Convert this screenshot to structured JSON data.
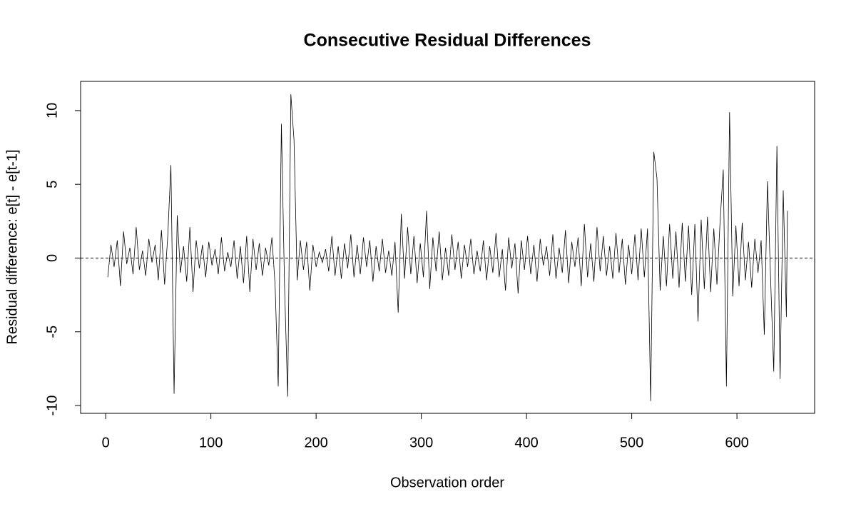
{
  "chart_data": {
    "type": "line",
    "title": "Consecutive Residual Differences",
    "x_label": "Observation order",
    "y_label": "Residual difference: e[t] - e[t-1]",
    "color": "#000000",
    "reference_line": 0,
    "xlim": [
      -23.84,
      673.84
    ],
    "ylim": [
      -10.53,
      11.98
    ],
    "xticks": [
      0,
      100,
      200,
      300,
      400,
      500,
      600
    ],
    "yticks": [
      -10,
      -5,
      0,
      5,
      10
    ],
    "x": [
      2,
      5,
      8,
      11,
      14,
      17,
      20,
      23,
      26,
      29,
      32,
      35,
      38,
      41,
      44,
      47,
      50,
      53,
      56,
      59,
      62,
      65,
      68,
      71,
      74,
      77,
      80,
      83,
      86,
      89,
      92,
      95,
      98,
      101,
      104,
      107,
      110,
      113,
      116,
      119,
      122,
      125,
      128,
      131,
      134,
      137,
      140,
      143,
      146,
      149,
      152,
      155,
      158,
      161,
      164,
      167,
      170,
      173,
      176,
      179,
      182,
      185,
      188,
      191,
      194,
      197,
      200,
      203,
      206,
      209,
      212,
      215,
      218,
      221,
      224,
      227,
      230,
      233,
      236,
      239,
      242,
      245,
      248,
      251,
      254,
      257,
      260,
      263,
      266,
      269,
      272,
      275,
      278,
      281,
      284,
      287,
      290,
      293,
      296,
      299,
      302,
      305,
      308,
      311,
      314,
      317,
      320,
      323,
      326,
      329,
      332,
      335,
      338,
      341,
      344,
      347,
      350,
      353,
      356,
      359,
      362,
      365,
      368,
      371,
      374,
      377,
      380,
      383,
      386,
      389,
      392,
      395,
      398,
      401,
      404,
      407,
      410,
      413,
      416,
      419,
      422,
      425,
      428,
      431,
      434,
      437,
      440,
      443,
      446,
      449,
      452,
      455,
      458,
      461,
      464,
      467,
      470,
      473,
      476,
      479,
      482,
      485,
      488,
      491,
      494,
      497,
      500,
      503,
      506,
      509,
      512,
      515,
      518,
      521,
      524,
      527,
      530,
      533,
      536,
      539,
      542,
      545,
      548,
      551,
      554,
      557,
      560,
      563,
      566,
      569,
      572,
      575,
      578,
      581,
      584,
      587,
      590,
      593,
      596,
      599,
      602,
      605,
      608,
      611,
      614,
      617,
      620,
      623,
      626,
      629,
      632,
      635,
      638,
      641,
      644,
      647,
      648
    ],
    "values": [
      -1.3,
      0.9,
      -0.6,
      1.2,
      -1.9,
      1.8,
      -0.4,
      0.7,
      -1.1,
      2.1,
      -0.8,
      0.5,
      -1.2,
      1.3,
      -0.3,
      0.9,
      -1.5,
      1.9,
      -1.8,
      1.5,
      6.3,
      -9.2,
      2.9,
      -1.0,
      0.8,
      -1.6,
      2.1,
      -2.3,
      1.2,
      -0.7,
      0.9,
      -1.3,
      1.1,
      -0.5,
      0.6,
      -1.1,
      1.4,
      -0.9,
      0.4,
      -0.6,
      1.2,
      -1.4,
      0.8,
      -1.7,
      1.5,
      -2.3,
      1.3,
      -0.8,
      1.0,
      -1.2,
      0.7,
      -0.5,
      1.4,
      -1.8,
      -8.7,
      9.1,
      -1.9,
      -9.4,
      11.1,
      8.0,
      -1.5,
      1.2,
      -0.8,
      1.1,
      -2.2,
      0.9,
      -0.6,
      0.4,
      -0.3,
      0.6,
      -0.9,
      1.5,
      -1.2,
      0.8,
      -1.4,
      1.0,
      -0.7,
      1.6,
      -1.3,
      0.9,
      -1.1,
      1.4,
      -0.6,
      1.2,
      -1.6,
      0.8,
      -0.9,
      1.3,
      -1.0,
      0.5,
      -1.2,
      1.1,
      -3.7,
      3.0,
      -1.4,
      2.1,
      -1.1,
      1.5,
      -1.7,
      1.0,
      -1.3,
      3.2,
      -2.1,
      1.4,
      -0.9,
      1.8,
      -1.5,
      0.7,
      -1.2,
      1.6,
      -0.8,
      1.1,
      -1.4,
      0.9,
      -0.6,
      1.3,
      -1.1,
      0.5,
      -0.9,
      1.2,
      -1.5,
      0.8,
      -1.0,
      1.7,
      -1.3,
      0.6,
      -2.2,
      1.4,
      -0.7,
      1.0,
      -2.4,
      1.2,
      -0.8,
      1.5,
      -1.1,
      0.9,
      -1.6,
      1.3,
      -0.5,
      0.8,
      -1.2,
      1.6,
      -1.4,
      0.7,
      -1.0,
      1.9,
      -1.7,
      1.1,
      -0.6,
      1.4,
      -1.9,
      2.3,
      -1.3,
      1.0,
      -1.6,
      2.1,
      -0.9,
      1.5,
      -1.2,
      0.8,
      -1.4,
      1.7,
      -1.0,
      1.3,
      -1.8,
      0.9,
      -1.1,
      1.6,
      -1.5,
      2.0,
      -1.3,
      2.0,
      -9.7,
      7.2,
      5.4,
      -2.2,
      1.5,
      -1.9,
      2.3,
      -1.4,
      1.8,
      -2.0,
      2.4,
      -1.6,
      2.2,
      -2.5,
      2.3,
      -4.3,
      2.6,
      -2.1,
      2.8,
      -2.3,
      2.0,
      -1.8,
      2.5,
      6.0,
      -8.7,
      9.9,
      -2.6,
      2.2,
      -1.9,
      2.4,
      -1.5,
      1.1,
      -2.0,
      1.3,
      -1.0,
      1.2,
      -5.2,
      5.2,
      -1.4,
      -7.7,
      7.6,
      -8.2,
      4.6,
      -4.0,
      3.2
    ]
  }
}
